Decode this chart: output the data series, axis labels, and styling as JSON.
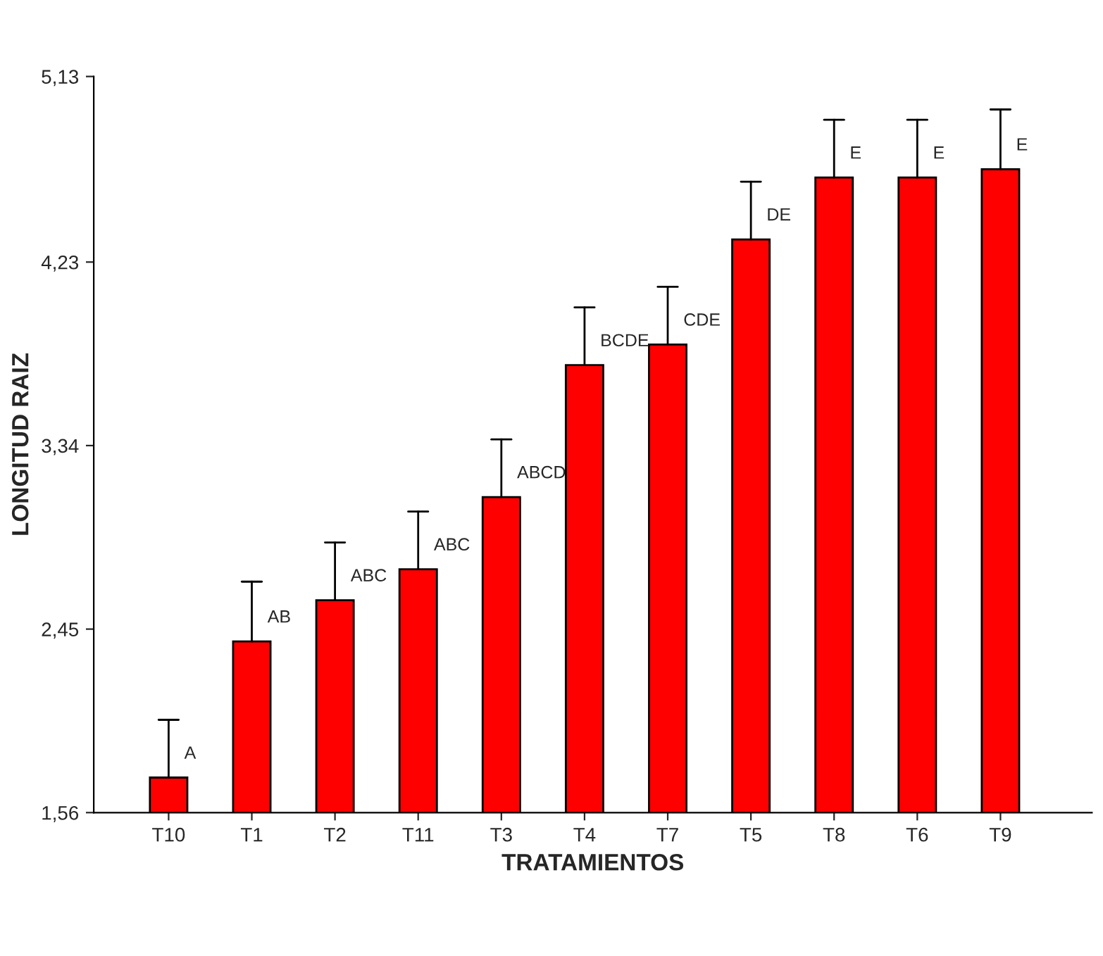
{
  "chart_data": {
    "type": "bar",
    "xlabel": "TRATAMIENTOS",
    "ylabel": "LONGITUD RAIZ",
    "categories": [
      "T10",
      "T1",
      "T2",
      "T11",
      "T3",
      "T4",
      "T7",
      "T5",
      "T8",
      "T6",
      "T9"
    ],
    "values": [
      1.73,
      2.39,
      2.59,
      2.74,
      3.09,
      3.73,
      3.83,
      4.34,
      4.64,
      4.64,
      4.68
    ],
    "errors": [
      [
        1.73,
        2.01
      ],
      [
        2.39,
        2.68
      ],
      [
        2.59,
        2.87
      ],
      [
        2.74,
        3.02
      ],
      [
        3.09,
        3.37
      ],
      [
        3.73,
        4.01
      ],
      [
        3.83,
        4.11
      ],
      [
        4.34,
        4.62
      ],
      [
        4.64,
        4.92
      ],
      [
        4.64,
        4.92
      ],
      [
        4.68,
        4.97
      ]
    ],
    "color": "#ff0000",
    "ylim": [
      1.56,
      5.13
    ],
    "yticks": [
      {
        "value": 1.56,
        "label": "1,56"
      },
      {
        "value": 2.45,
        "label": "2,45"
      },
      {
        "value": 3.34,
        "label": "3,34"
      },
      {
        "value": 4.23,
        "label": "4,23"
      },
      {
        "value": 5.13,
        "label": "5,13"
      }
    ],
    "grid": false,
    "legend": false,
    "annotations": [
      {
        "text": "A",
        "x": "T10",
        "y": 1.73
      },
      {
        "text": "AB",
        "x": "T1",
        "y": 2.39
      },
      {
        "text": "ABC",
        "x": "T2",
        "y": 2.59
      },
      {
        "text": "ABC",
        "x": "T11",
        "y": 2.74
      },
      {
        "text": "ABCD",
        "x": "T3",
        "y": 3.09
      },
      {
        "text": "BCDE",
        "x": "T4",
        "y": 3.73
      },
      {
        "text": "CDE",
        "x": "T7",
        "y": 3.83
      },
      {
        "text": "DE",
        "x": "T5",
        "y": 4.34
      },
      {
        "text": "E",
        "x": "T8",
        "y": 4.64
      },
      {
        "text": "E",
        "x": "T6",
        "y": 4.64
      },
      {
        "text": "E",
        "x": "T9",
        "y": 4.68
      }
    ]
  }
}
